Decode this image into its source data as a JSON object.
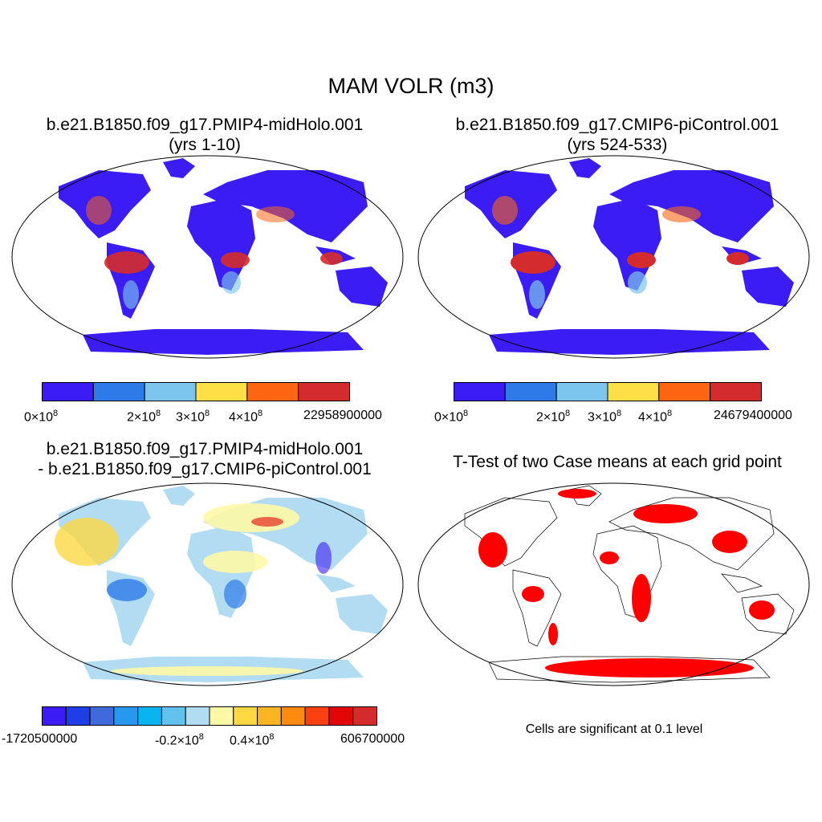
{
  "main_title": "MAM VOLR (m3)",
  "panels": {
    "top_left": {
      "title_line1": "b.e21.B1850.f09_g17.PMIP4-midHolo.001",
      "title_line2": "(yrs 1-10)",
      "colorbar": {
        "colors": [
          "#3b1cf2",
          "#2c7be8",
          "#7cc6ee",
          "#fde048",
          "#fc6612",
          "#d42c2c"
        ],
        "labels": [
          {
            "base": "0×10",
            "exp": "8"
          },
          {
            "base": "2×10",
            "exp": "8"
          },
          {
            "base": "3×10",
            "exp": "8"
          },
          {
            "base": "4×10",
            "exp": "8"
          },
          {
            "text": "22958900000"
          }
        ]
      }
    },
    "top_right": {
      "title_line1": "b.e21.B1850.f09_g17.CMIP6-piControl.001",
      "title_line2": "(yrs 524-533)",
      "colorbar": {
        "colors": [
          "#3b1cf2",
          "#2c7be8",
          "#7cc6ee",
          "#fde048",
          "#fc6612",
          "#d42c2c"
        ],
        "labels": [
          {
            "base": "0×10",
            "exp": "8"
          },
          {
            "base": "2×10",
            "exp": "8"
          },
          {
            "base": "3×10",
            "exp": "8"
          },
          {
            "base": "4×10",
            "exp": "8"
          },
          {
            "text": "24679400000"
          }
        ]
      }
    },
    "bottom_left": {
      "title_line1": "b.e21.B1850.f09_g17.PMIP4-midHolo.001",
      "title_line2": "- b.e21.B1850.f09_g17.CMIP6-piControl.001",
      "colorbar": {
        "colors": [
          "#3b1cf2",
          "#1f3ee6",
          "#4069dc",
          "#2898ee",
          "#0ab4f0",
          "#62c2ee",
          "#b2dcf2",
          "#fdf8a6",
          "#fdd843",
          "#fcb424",
          "#fc8a10",
          "#fc4010",
          "#e20606",
          "#d42c2c"
        ],
        "labels": [
          {
            "text": "-1720500000"
          },
          {
            "base": "-0.2×10",
            "exp": "8"
          },
          {
            "base": "0.4×10",
            "exp": "8"
          },
          {
            "text": "606700000"
          }
        ]
      }
    },
    "bottom_right": {
      "title": "T-Test of two Case means at each grid point",
      "note": "Cells are significant at 0.1 level",
      "color": "#ff0000"
    }
  }
}
